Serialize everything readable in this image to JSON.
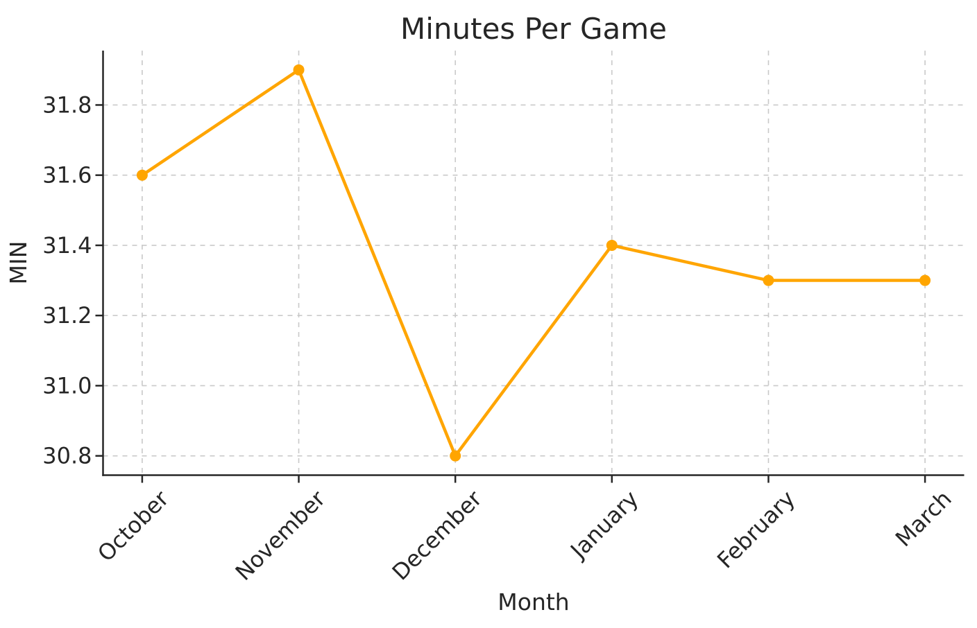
{
  "chart_data": {
    "type": "line",
    "title": "Minutes Per Game",
    "xlabel": "Month",
    "ylabel": "MIN",
    "categories": [
      "October",
      "November",
      "December",
      "January",
      "February",
      "March"
    ],
    "series": [
      {
        "name": "MIN",
        "values": [
          31.6,
          31.9,
          30.8,
          31.4,
          31.3,
          31.3
        ],
        "color": "#FFA500",
        "marker": "circle"
      }
    ],
    "ytick_labels": [
      "30.8",
      "31.0",
      "31.2",
      "31.4",
      "31.6",
      "31.8"
    ],
    "ylim": [
      30.745,
      31.955
    ],
    "xlim": [
      -0.25,
      5.25
    ],
    "grid": {
      "visible": true,
      "style": "dashed",
      "color": "#c9c9c9"
    },
    "legend_position": "none",
    "colors": {
      "text": "#262626",
      "axis": "#262626",
      "background": "#ffffff",
      "line": "#FFA500"
    }
  }
}
